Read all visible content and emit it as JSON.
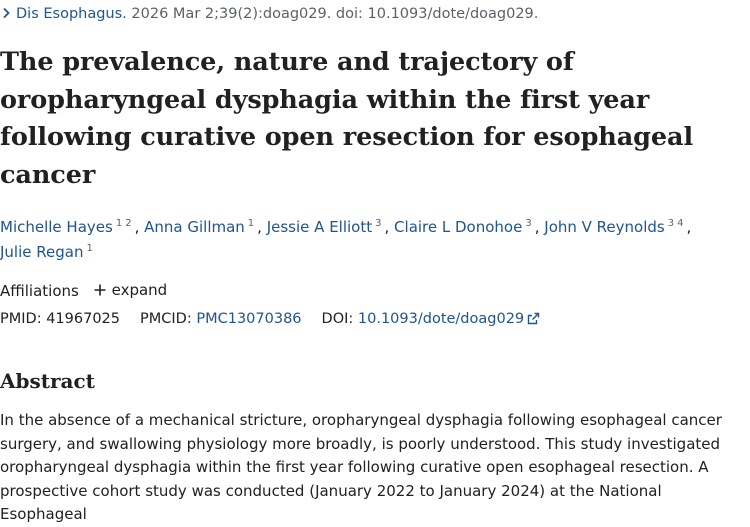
{
  "citation": {
    "journal": "Dis Esophagus.",
    "details": " 2026 Mar 2;39(2):doag029. doi: 10.1093/dote/doag029."
  },
  "article": {
    "title": "The prevalence, nature and trajectory of oropharyngeal dysphagia within the first year following curative open resection for esophageal cancer",
    "authors": [
      {
        "name": "Michelle Hayes",
        "affils": [
          "1",
          "2"
        ]
      },
      {
        "name": "Anna Gillman",
        "affils": [
          "1"
        ]
      },
      {
        "name": "Jessie A Elliott",
        "affils": [
          "3"
        ]
      },
      {
        "name": "Claire L Donohoe",
        "affils": [
          "3"
        ]
      },
      {
        "name": "John V Reynolds",
        "affils": [
          "3",
          "4"
        ]
      },
      {
        "name": "Julie Regan",
        "affils": [
          "1"
        ]
      }
    ],
    "affiliations_label": "Affiliations",
    "expand_label": "expand",
    "pmid_label": "PMID:",
    "pmid": "41967025",
    "pmcid_label": "PMCID:",
    "pmcid": "PMC13070386",
    "doi_label": "DOI:",
    "doi": "10.1093/dote/doag029"
  },
  "abstract": {
    "heading": "Abstract",
    "text": "In the absence of a mechanical stricture, oropharyngeal dysphagia following esophageal cancer surgery, and swallowing physiology more broadly, is poorly understood. This study investigated oropharyngeal dysphagia within the first year following curative open esophageal resection. A prospective cohort study was conducted (January 2022 to January 2024) at the National Esophageal"
  },
  "colors": {
    "link": "#205493",
    "text": "#212121",
    "muted": "#5b616b"
  },
  "icons": {
    "citation": "chevron-right-icon",
    "expand": "plus-icon",
    "doi": "external-link-icon"
  }
}
